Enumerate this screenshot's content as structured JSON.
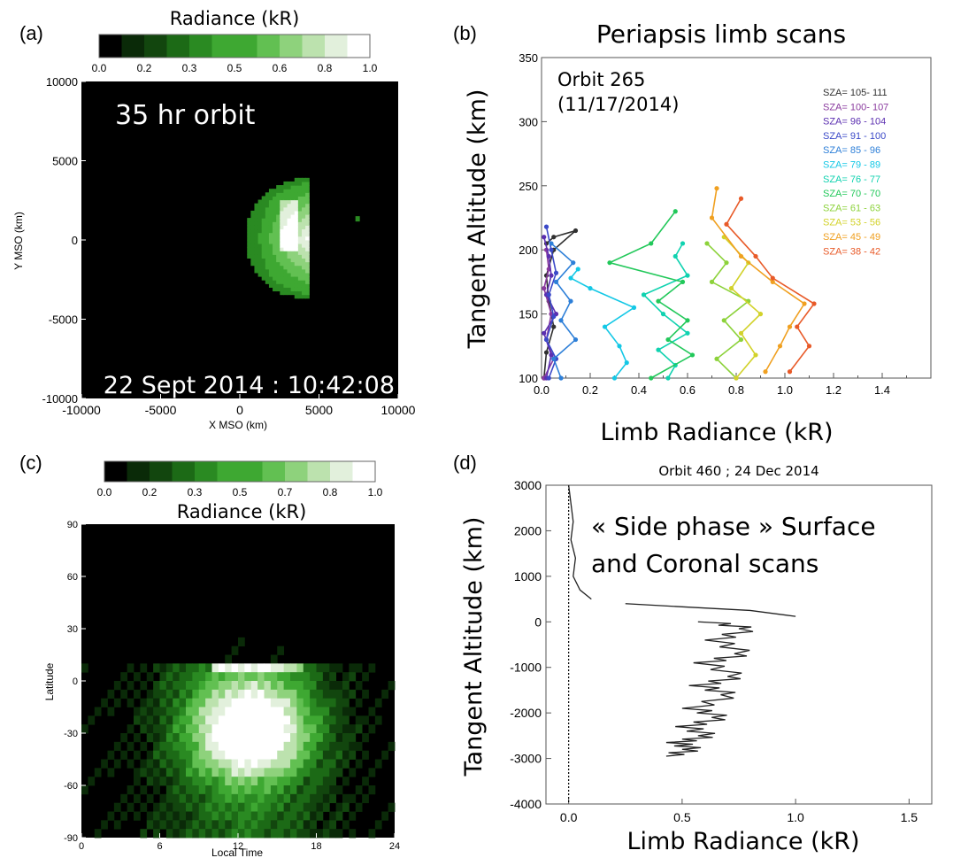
{
  "panels": {
    "a": {
      "letter": "(a)",
      "colorbar_title": "Radiance (kR)",
      "colorbar_ticks": [
        "0.0",
        "0.2",
        "0.3",
        "0.5",
        "0.6",
        "0.8",
        "1.0"
      ],
      "inset_title": "35 hr orbit",
      "inset_date": "22 Sept 2014 : 10:42:08",
      "xlabel": "X MSO (km)",
      "ylabel": "Y MSO (km)",
      "xticks": [
        "-10000",
        "-5000",
        "0",
        "5000",
        "10000"
      ],
      "yticks": [
        "10000",
        "5000",
        "0",
        "-5000",
        "-10000"
      ]
    },
    "b": {
      "letter": "(b)",
      "title": "Periapsis limb scans",
      "annotation_line1": "Orbit 265",
      "annotation_line2": "(11/17/2014)",
      "xlabel": "Limb Radiance (kR)",
      "ylabel": "Tangent Altitude (km)",
      "xticks": [
        "0.0",
        "0.2",
        "0.4",
        "0.6",
        "0.8",
        "1.0",
        "1.2",
        "1.4"
      ],
      "yticks": [
        "350",
        "300",
        "250",
        "200",
        "150",
        "100"
      ]
    },
    "c": {
      "letter": "(c)",
      "colorbar_title": "Radiance (kR)",
      "colorbar_ticks": [
        "0.0",
        "0.2",
        "0.3",
        "0.5",
        "0.7",
        "0.8",
        "1.0"
      ],
      "xlabel": "Local Time",
      "ylabel": "Latitude",
      "xticks": [
        "0",
        "6",
        "12",
        "18",
        "24"
      ],
      "yticks": [
        "90",
        "60",
        "30",
        "0",
        "-30",
        "-60",
        "-90"
      ]
    },
    "d": {
      "letter": "(d)",
      "title": "Orbit  460 ; 24 Dec 2014",
      "annotation_line1": "« Side phase » Surface",
      "annotation_line2": "and Coronal scans",
      "xlabel": "Limb Radiance (kR)",
      "ylabel": "Tangent Altitude (km)",
      "xticks": [
        "0.0",
        "0.5",
        "1.0",
        "1.5"
      ],
      "yticks": [
        "3000",
        "2000",
        "1000",
        "0",
        "-1000",
        "-2000",
        "-3000",
        "-4000"
      ]
    }
  },
  "colors": {
    "colormap": [
      "#000000",
      "#0a2a08",
      "#12460e",
      "#1c6a16",
      "#2a8a22",
      "#3ea832",
      "#62c052",
      "#8ed27c",
      "#bce2ae",
      "#e2f0dc",
      "#ffffff"
    ],
    "sza_colors": [
      "#303030",
      "#8a3a9e",
      "#5b2fb0",
      "#3b49c8",
      "#2d7fd8",
      "#14c8e6",
      "#10d2b0",
      "#22c85a",
      "#8cd23a",
      "#d2d22a",
      "#f0a020",
      "#e85a28"
    ]
  },
  "chart_data": [
    {
      "panel": "a",
      "type": "heatmap",
      "title": "35 hr orbit",
      "subtitle": "22 Sept 2014 : 10:42:08",
      "xlabel": "X MSO (km)",
      "ylabel": "Y MSO (km)",
      "xlim": [
        -10000,
        10000
      ],
      "ylim": [
        -10000,
        10000
      ],
      "colorbar": {
        "label": "Radiance (kR)",
        "range": [
          0.0,
          1.0
        ]
      },
      "features": [
        {
          "shape": "crescent",
          "x_range": [
            500,
            4000
          ],
          "y_range": [
            -3700,
            3600
          ],
          "peak_radiance": 1.0
        },
        {
          "shape": "point",
          "x": 7300,
          "y": 1300,
          "radiance": 0.4
        }
      ]
    },
    {
      "panel": "b",
      "type": "line",
      "title": "Periapsis limb scans",
      "annotation": "Orbit 265 (11/17/2014)",
      "xlabel": "Limb Radiance (kR)",
      "ylabel": "Tangent Altitude (km)",
      "xlim": [
        0.0,
        1.6
      ],
      "ylim": [
        100,
        350
      ],
      "legend_position": "top-right",
      "series": [
        {
          "name": "SZA= 105- 111",
          "x": [
            0.01,
            0.02,
            0.05,
            0.03,
            0.02,
            0.05,
            0.14,
            0.05,
            0.02
          ],
          "y": [
            100,
            120,
            140,
            160,
            180,
            200,
            215,
            210,
            205
          ]
        },
        {
          "name": "SZA= 100- 107",
          "x": [
            0.01,
            0.05,
            0.02,
            0.04,
            0.01,
            0.03,
            0.02
          ],
          "y": [
            100,
            115,
            130,
            150,
            170,
            185,
            200
          ]
        },
        {
          "name": "SZA= 96  - 104",
          "x": [
            0.02,
            0.04,
            0.01,
            0.06,
            0.02,
            0.04,
            0.03,
            0.01
          ],
          "y": [
            100,
            118,
            135,
            150,
            165,
            180,
            195,
            210
          ]
        },
        {
          "name": "SZA= 91  - 100",
          "x": [
            0.03,
            0.06,
            0.02,
            0.05,
            0.03,
            0.06,
            0.04,
            0.02
          ],
          "y": [
            100,
            115,
            130,
            148,
            165,
            182,
            200,
            218
          ]
        },
        {
          "name": "SZA= 85  -  96",
          "x": [
            0.08,
            0.05,
            0.14,
            0.08,
            0.12,
            0.06,
            0.13,
            0.04
          ],
          "y": [
            100,
            115,
            130,
            145,
            160,
            175,
            190,
            205
          ]
        },
        {
          "name": "SZA= 79  -  89",
          "x": [
            0.3,
            0.35,
            0.32,
            0.26,
            0.38,
            0.2,
            0.12,
            0.15
          ],
          "y": [
            100,
            112,
            125,
            140,
            155,
            170,
            178,
            185
          ]
        },
        {
          "name": "SZA= 76  -  77",
          "x": [
            0.52,
            0.55,
            0.48,
            0.6,
            0.5,
            0.42,
            0.6,
            0.55,
            0.58
          ],
          "y": [
            100,
            110,
            122,
            135,
            150,
            165,
            180,
            195,
            205
          ]
        },
        {
          "name": "SZA= 70  -  70",
          "x": [
            0.45,
            0.62,
            0.52,
            0.6,
            0.48,
            0.58,
            0.28,
            0.45,
            0.55
          ],
          "y": [
            100,
            118,
            130,
            145,
            160,
            175,
            190,
            205,
            230
          ]
        },
        {
          "name": "SZA= 61  -  63",
          "x": [
            0.8,
            0.72,
            0.82,
            0.75,
            0.85,
            0.7,
            0.76,
            0.68
          ],
          "y": [
            100,
            115,
            130,
            145,
            160,
            175,
            190,
            205
          ]
        },
        {
          "name": "SZA= 53  -  56",
          "x": [
            0.8,
            0.88,
            0.82,
            0.9,
            0.78,
            0.85,
            0.75
          ],
          "y": [
            100,
            118,
            135,
            150,
            170,
            190,
            210
          ]
        },
        {
          "name": "SZA= 45  -  49",
          "x": [
            0.92,
            0.98,
            1.02,
            1.08,
            0.95,
            0.82,
            0.7,
            0.72
          ],
          "y": [
            105,
            125,
            140,
            158,
            175,
            195,
            225,
            248
          ]
        },
        {
          "name": "SZA= 38  -  42",
          "x": [
            1.02,
            1.1,
            1.05,
            1.12,
            0.95,
            0.88,
            0.76,
            0.82
          ],
          "y": [
            105,
            125,
            140,
            158,
            178,
            195,
            220,
            240
          ]
        }
      ]
    },
    {
      "panel": "c",
      "type": "heatmap",
      "xlabel": "Local Time",
      "ylabel": "Latitude",
      "xlim": [
        0,
        24
      ],
      "ylim": [
        -90,
        90
      ],
      "colorbar": {
        "label": "Radiance (kR)",
        "range": [
          0.0,
          1.0
        ]
      },
      "features": [
        {
          "shape": "blob",
          "center_local_time": 13,
          "center_latitude": -25,
          "peak_radiance": 1.0
        }
      ]
    },
    {
      "panel": "d",
      "type": "line",
      "title": "Orbit  460 ; 24 Dec 2014",
      "annotation": "« Side phase » Surface and Coronal scans",
      "xlabel": "Limb Radiance (kR)",
      "ylabel": "Tangent Altitude (km)",
      "xlim": [
        -0.1,
        1.6
      ],
      "ylim": [
        -4000,
        3000
      ],
      "series": [
        {
          "x": [
            0.0,
            0.01,
            0.02,
            0.01,
            0.03,
            0.02,
            0.05,
            0.1
          ],
          "y": [
            3000,
            2600,
            2200,
            1800,
            1400,
            1000,
            700,
            500
          ]
        },
        {
          "x": [
            0.25,
            0.5,
            0.8,
            1.0
          ],
          "y": [
            400,
            330,
            250,
            120
          ]
        },
        {
          "x": [
            0.62,
            0.8,
            0.65,
            0.78,
            0.6,
            0.75,
            0.58,
            0.72,
            0.55,
            0.68,
            0.52,
            0.62,
            0.48,
            0.55,
            0.43
          ],
          "y": [
            0,
            -150,
            -400,
            -700,
            -900,
            -1200,
            -1400,
            -1600,
            -1900,
            -2100,
            -2300,
            -2500,
            -2650,
            -2800,
            -2950
          ]
        }
      ]
    }
  ]
}
